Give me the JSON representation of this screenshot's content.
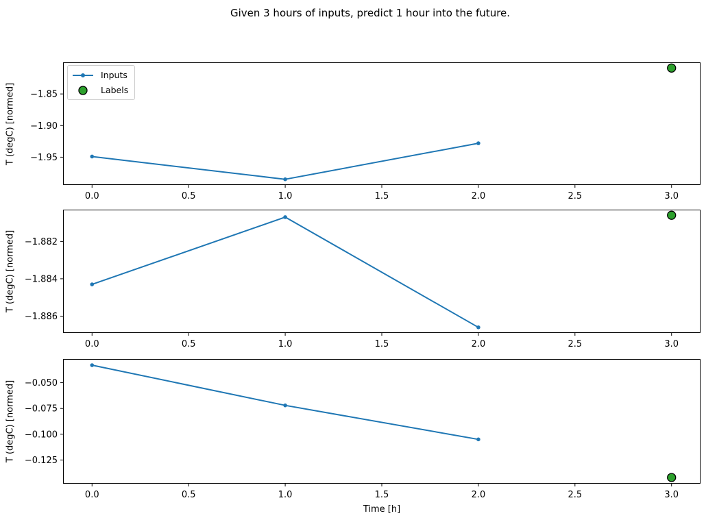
{
  "legend": {
    "items": [
      {
        "label": "Inputs",
        "marker": "blue-line-with-dot"
      },
      {
        "label": "Labels",
        "marker": "green-circle-black-edge"
      }
    ]
  },
  "colors": {
    "inputs_line": "#1f77b4",
    "labels_fill": "#2ca02c",
    "labels_edge": "#000000",
    "axis": "#000000",
    "text": "#000000",
    "legend_border": "#cccccc",
    "background": "#ffffff"
  },
  "chart_data": {
    "type": "line",
    "title": "Given 3 hours of inputs, predict 1 hour into the future.",
    "xlabel": "Time [h]",
    "xlim": [
      -0.15,
      3.15
    ],
    "xticks": [
      0,
      0.5,
      1,
      1.5,
      2,
      2.5,
      3
    ],
    "xtick_labels": [
      "0.0",
      "0.5",
      "1.0",
      "1.5",
      "2.0",
      "2.5",
      "3.0"
    ],
    "legend_entries": [
      "Inputs",
      "Labels"
    ],
    "legend_position": "upper left of subplot 1",
    "grid": false,
    "subplots": [
      {
        "ylabel": "T (degC) [normed]",
        "ylim": [
          -1.994,
          -1.8
        ],
        "yticks": [
          -1.85,
          -1.9,
          -1.95
        ],
        "ytick_labels": [
          "−1.85",
          "−1.90",
          "−1.95"
        ],
        "series": [
          {
            "name": "Inputs",
            "type": "line",
            "x": [
              0,
              1,
              2
            ],
            "y": [
              -1.949,
              -1.985,
              -1.928
            ]
          },
          {
            "name": "Labels",
            "type": "scatter",
            "x": [
              3
            ],
            "y": [
              -1.809
            ]
          }
        ]
      },
      {
        "ylabel": "T (degC) [normed]",
        "ylim": [
          -1.8869,
          -1.8803
        ],
        "yticks": [
          -1.882,
          -1.884,
          -1.886
        ],
        "ytick_labels": [
          "−1.882",
          "−1.884",
          "−1.886"
        ],
        "series": [
          {
            "name": "Inputs",
            "type": "line",
            "x": [
              0,
              1,
              2
            ],
            "y": [
              -1.8843,
              -1.8807,
              -1.8866
            ]
          },
          {
            "name": "Labels",
            "type": "scatter",
            "x": [
              3
            ],
            "y": [
              -1.8806
            ]
          }
        ]
      },
      {
        "ylabel": "T (degC) [normed]",
        "ylim": [
          -0.148,
          -0.027
        ],
        "yticks": [
          -0.05,
          -0.075,
          -0.1,
          -0.125
        ],
        "ytick_labels": [
          "−0.050",
          "−0.075",
          "−0.100",
          "−0.125"
        ],
        "series": [
          {
            "name": "Inputs",
            "type": "line",
            "x": [
              0,
              1,
              2
            ],
            "y": [
              -0.033,
              -0.072,
              -0.105
            ]
          },
          {
            "name": "Labels",
            "type": "scatter",
            "x": [
              3
            ],
            "y": [
              -0.142
            ]
          }
        ]
      }
    ]
  }
}
